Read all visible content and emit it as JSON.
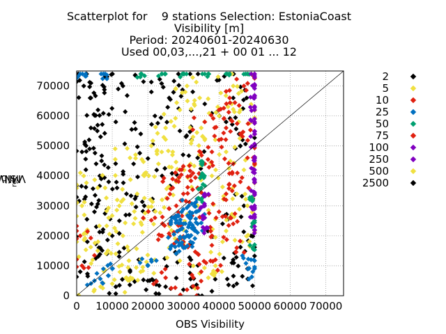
{
  "chart_data": {
    "type": "scatter",
    "title_lines": [
      "Scatterplot for    9 stations Selection: EstoniaCoast",
      "Visibility [m]",
      "Period: 20240601-20240630",
      "Used 00,03,...,21 + 00 01 ... 12"
    ],
    "xlabel": "OBS Visibility",
    "ylabel": "MNWC",
    "ylabel_sub": "ref",
    "ylabel_rest": " Visibility",
    "xlim": [
      0,
      75000
    ],
    "ylim": [
      0,
      75000
    ],
    "xticks": [
      "0",
      "10000",
      "20000",
      "30000",
      "40000",
      "50000",
      "60000",
      "70000"
    ],
    "yticks": [
      "0",
      "10000",
      "20000",
      "30000",
      "40000",
      "50000",
      "60000",
      "70000"
    ],
    "grid": true,
    "diagonal_line": true,
    "legend": [
      {
        "label": "2",
        "color": "#000000"
      },
      {
        "label": "5",
        "color": "#f0e040"
      },
      {
        "label": "10",
        "color": "#e02010"
      },
      {
        "label": "25",
        "color": "#0070c0"
      },
      {
        "label": "50",
        "color": "#00a070"
      },
      {
        "label": "75",
        "color": "#e02010"
      },
      {
        "label": "100",
        "color": "#8000c0"
      },
      {
        "label": "250",
        "color": "#8000c0"
      },
      {
        "label": "500",
        "color": "#f0e040"
      },
      {
        "label": "2500",
        "color": "#000000"
      }
    ],
    "series": [
      {
        "color": "#000000",
        "cloud": "wide",
        "points": [
          [
            500,
            74000
          ],
          [
            2000,
            70000
          ],
          [
            4000,
            66000
          ],
          [
            6000,
            62000
          ],
          [
            8000,
            73000
          ],
          [
            3500,
            52000
          ],
          [
            1500,
            48000
          ],
          [
            7000,
            45000
          ],
          [
            11000,
            58000
          ],
          [
            13000,
            70000
          ],
          [
            9000,
            38000
          ],
          [
            2500,
            33000
          ],
          [
            5000,
            28000
          ],
          [
            12000,
            25000
          ],
          [
            3000,
            18000
          ],
          [
            8500,
            14000
          ],
          [
            1000,
            8000
          ],
          [
            15000,
            8000
          ],
          [
            20000,
            5000
          ],
          [
            25000,
            3000
          ],
          [
            30000,
            2000
          ],
          [
            38000,
            1500
          ],
          [
            45000,
            4000
          ],
          [
            48000,
            9000
          ],
          [
            49000,
            20000
          ],
          [
            47000,
            30000
          ],
          [
            46000,
            50000
          ],
          [
            40000,
            72000
          ],
          [
            30000,
            74000
          ],
          [
            26000,
            66000
          ],
          [
            22000,
            60000
          ],
          [
            18000,
            54000
          ],
          [
            16000,
            44000
          ],
          [
            24000,
            40000
          ],
          [
            34000,
            46000
          ],
          [
            42000,
            58000
          ],
          [
            44000,
            66000
          ],
          [
            36000,
            64000
          ],
          [
            28000,
            14000
          ],
          [
            32000,
            10000
          ],
          [
            4000,
            56000
          ],
          [
            6500,
            40000
          ],
          [
            10000,
            20000
          ],
          [
            14000,
            34000
          ],
          [
            19000,
            30000
          ],
          [
            21000,
            68000
          ],
          [
            29000,
            55000
          ],
          [
            41000,
            24000
          ],
          [
            44000,
            12000
          ],
          [
            11000,
            3000
          ]
        ]
      },
      {
        "color": "#f0e040",
        "cloud": "wide",
        "points": [
          [
            1500,
            30000
          ],
          [
            3000,
            22000
          ],
          [
            6000,
            18000
          ],
          [
            9000,
            26000
          ],
          [
            12000,
            30000
          ],
          [
            16000,
            24000
          ],
          [
            20000,
            28000
          ],
          [
            24000,
            32000
          ],
          [
            28000,
            38000
          ],
          [
            32000,
            44000
          ],
          [
            36000,
            52000
          ],
          [
            40000,
            60000
          ],
          [
            44000,
            70000
          ],
          [
            48000,
            74000
          ],
          [
            46000,
            62000
          ],
          [
            42000,
            48000
          ],
          [
            38000,
            40000
          ],
          [
            34000,
            30000
          ],
          [
            30000,
            22000
          ],
          [
            26000,
            16000
          ],
          [
            22000,
            12000
          ],
          [
            18000,
            8000
          ],
          [
            14000,
            6000
          ],
          [
            10000,
            4000
          ],
          [
            5000,
            2000
          ],
          [
            47000,
            42000
          ],
          [
            45000,
            34000
          ],
          [
            43000,
            26000
          ],
          [
            41000,
            18000
          ],
          [
            39000,
            10000
          ],
          [
            37000,
            6000
          ],
          [
            35000,
            56000
          ],
          [
            33000,
            64000
          ],
          [
            31000,
            70000
          ],
          [
            29000,
            62000
          ],
          [
            27000,
            48000
          ],
          [
            25000,
            56000
          ],
          [
            23000,
            44000
          ],
          [
            21000,
            50000
          ],
          [
            19000,
            40000
          ],
          [
            17000,
            34000
          ],
          [
            15000,
            46000
          ],
          [
            13000,
            20000
          ],
          [
            11000,
            14000
          ],
          [
            8000,
            36000
          ],
          [
            2000,
            40000
          ],
          [
            4500,
            12000
          ],
          [
            49000,
            58000
          ],
          [
            48000,
            30000
          ],
          [
            46500,
            18000
          ]
        ]
      },
      {
        "color": "#e02010",
        "cloud": "mid",
        "points": [
          [
            28000,
            30000
          ],
          [
            30000,
            34000
          ],
          [
            32000,
            40000
          ],
          [
            34000,
            36000
          ],
          [
            36000,
            44000
          ],
          [
            38000,
            48000
          ],
          [
            40000,
            52000
          ],
          [
            42000,
            56000
          ],
          [
            44000,
            44000
          ],
          [
            46000,
            38000
          ],
          [
            48000,
            46000
          ],
          [
            26000,
            24000
          ],
          [
            24000,
            20000
          ],
          [
            22000,
            26000
          ],
          [
            30000,
            18000
          ],
          [
            34000,
            14000
          ],
          [
            38000,
            20000
          ],
          [
            40000,
            28000
          ],
          [
            42000,
            34000
          ],
          [
            44000,
            24000
          ],
          [
            46000,
            54000
          ],
          [
            36000,
            58000
          ],
          [
            32000,
            26000
          ],
          [
            29000,
            42000
          ],
          [
            27000,
            36000
          ],
          [
            40000,
            62000
          ],
          [
            43000,
            66000
          ],
          [
            47000,
            70000
          ],
          [
            35000,
            8000
          ],
          [
            39000,
            12000
          ],
          [
            1000,
            20000
          ],
          [
            1500,
            10000
          ],
          [
            31000,
            2000
          ],
          [
            25000,
            6000
          ],
          [
            45000,
            16000
          ]
        ]
      },
      {
        "color": "#0070c0",
        "cloud": "core",
        "points": [
          [
            29000,
            22000
          ],
          [
            30000,
            24000
          ],
          [
            31000,
            20000
          ],
          [
            32000,
            26000
          ],
          [
            33000,
            22000
          ],
          [
            28000,
            18000
          ],
          [
            30000,
            16000
          ],
          [
            32000,
            18000
          ],
          [
            34000,
            24000
          ],
          [
            29500,
            28000
          ],
          [
            31500,
            30000
          ],
          [
            27500,
            26000
          ],
          [
            33500,
            28000
          ],
          [
            49000,
            12000
          ],
          [
            49500,
            8000
          ],
          [
            20000,
            10000
          ],
          [
            5000,
            5000
          ],
          [
            10000,
            9000
          ],
          [
            1000,
            74000
          ],
          [
            8000,
            74000
          ]
        ]
      },
      {
        "color": "#00a070",
        "cloud": "edge",
        "points": [
          [
            35000,
            40000
          ],
          [
            35000,
            36000
          ],
          [
            35000,
            44000
          ],
          [
            35000,
            32000
          ],
          [
            49500,
            16000
          ],
          [
            49500,
            24000
          ],
          [
            49500,
            32000
          ],
          [
            24000,
            74000
          ],
          [
            30000,
            74000
          ],
          [
            36000,
            74000
          ],
          [
            42000,
            74000
          ],
          [
            48000,
            74000
          ],
          [
            18000,
            74000
          ]
        ]
      },
      {
        "color": "#8000c0",
        "cloud": "edge",
        "points": [
          [
            50000,
            74000
          ],
          [
            50000,
            70000
          ],
          [
            50000,
            66000
          ],
          [
            50000,
            62000
          ],
          [
            50000,
            58000
          ],
          [
            50000,
            54000
          ],
          [
            50000,
            50000
          ],
          [
            50000,
            46000
          ],
          [
            50000,
            42000
          ],
          [
            50000,
            38000
          ],
          [
            50000,
            34000
          ],
          [
            50000,
            30000
          ],
          [
            50000,
            26000
          ],
          [
            50000,
            22000
          ],
          [
            36000,
            30000
          ],
          [
            36000,
            26000
          ],
          [
            36000,
            22000
          ],
          [
            36000,
            34000
          ]
        ]
      }
    ]
  }
}
